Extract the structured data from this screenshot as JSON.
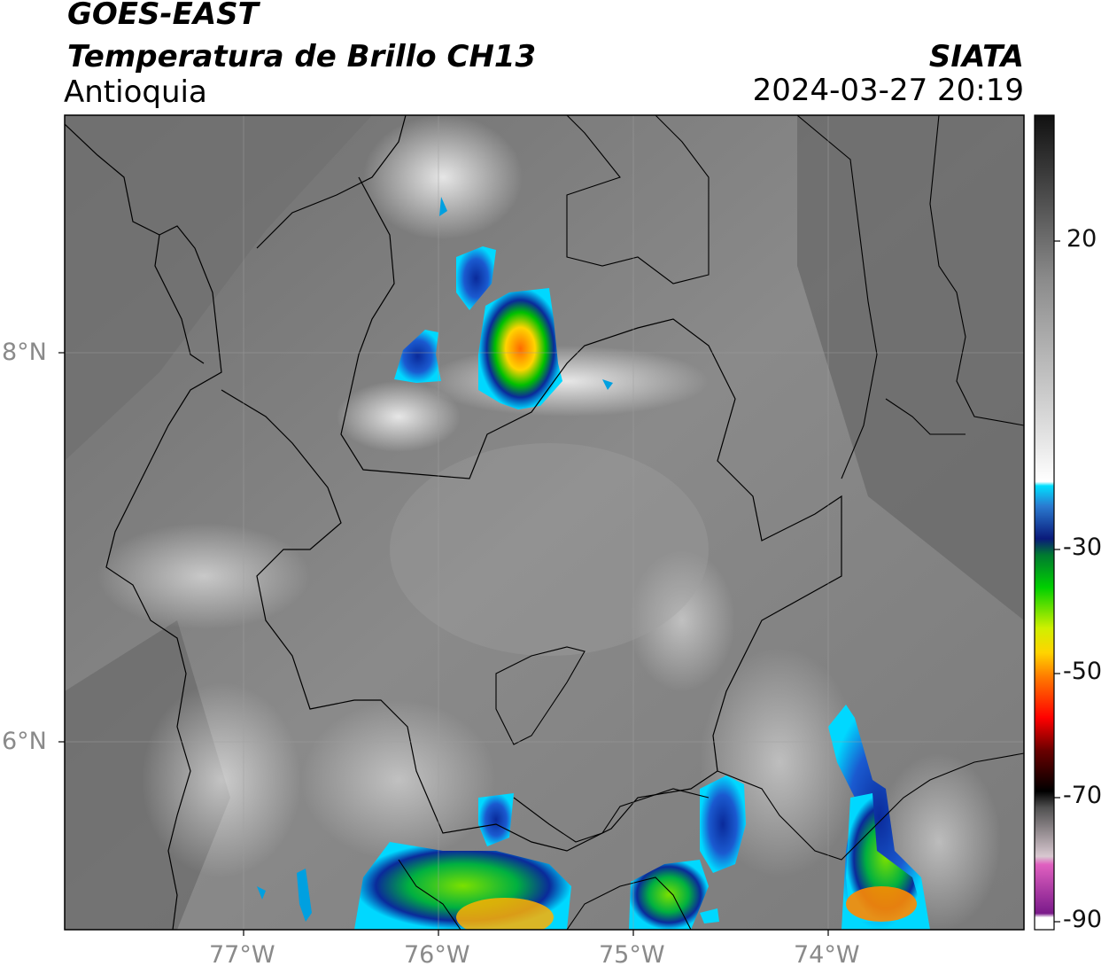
{
  "header": {
    "satellite": "GOES-EAST",
    "product": "Temperatura de Brillo CH13",
    "region": "Antioquia",
    "organization": "SIATA",
    "datetime": "2024-03-27 20:19"
  },
  "axes": {
    "lon_ticks": [
      "77°W",
      "76°W",
      "75°W",
      "74°W"
    ],
    "lat_ticks": [
      "8°N",
      "6°N"
    ]
  },
  "colorbar": {
    "ticks": [
      "20",
      "-30",
      "-50",
      "-70",
      "-90"
    ]
  },
  "colors": {
    "background": "#ffffff",
    "frame": "#000000",
    "axis_text": "#8a8a8a",
    "cloud_cold_top": "#ff6a00",
    "cloud_mid": "#00c000",
    "cloud_edge": "#00e5ff",
    "deep_blue": "#0a2a9a"
  }
}
